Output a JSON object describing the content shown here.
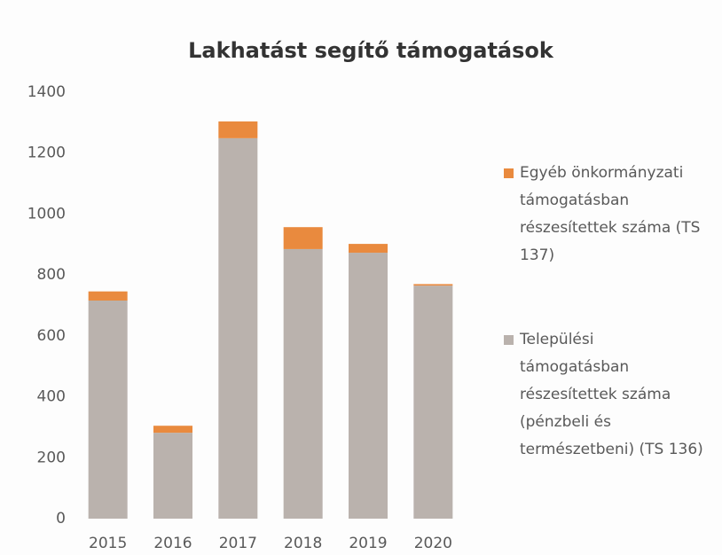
{
  "chart_data": {
    "type": "stacked_bar",
    "title": "Lakhatást segítő támogatások",
    "categories": [
      "2015",
      "2016",
      "2017",
      "2018",
      "2019",
      "2020"
    ],
    "series": [
      {
        "name": "Települési támogatásban részesítettek száma (pénzbeli és természetbeni) (TS 136)",
        "color": "#bab2ad",
        "values": [
          716,
          282,
          1249,
          885,
          873,
          765
        ]
      },
      {
        "name": "Egyéb önkormányzati támogatásban részesítettek száma (TS 137)",
        "color": "#e98a3e",
        "values": [
          30,
          23,
          55,
          72,
          29,
          5
        ]
      }
    ],
    "ylim": [
      0,
      1400
    ],
    "yticks": [
      0,
      200,
      400,
      600,
      800,
      1000,
      1200,
      1400
    ],
    "grid": false,
    "legend": "right"
  }
}
